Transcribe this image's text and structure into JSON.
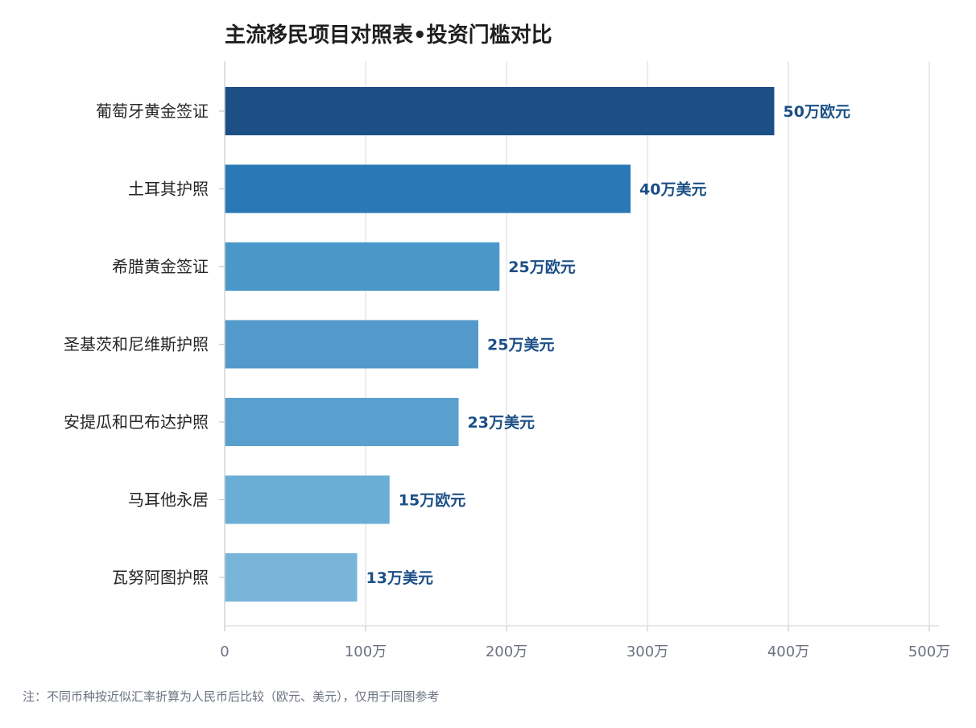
{
  "chart_data": {
    "type": "bar",
    "orientation": "horizontal",
    "title": "主流移民项目对照表•投资门槛对比",
    "categories": [
      "葡萄牙黄金签证",
      "土耳其护照",
      "希腊黄金签证",
      "圣基茨和尼维斯护照",
      "安提瓜和巴布达护照",
      "马耳他永居",
      "瓦努阿图护照"
    ],
    "values": [
      390,
      288,
      195,
      180,
      166,
      117,
      94
    ],
    "value_labels": [
      "50万欧元",
      "40万美元",
      "25万欧元",
      "25万美元",
      "23万美元",
      "15万欧元",
      "13万美元"
    ],
    "colors": [
      "#1c4f86",
      "#2a78b6",
      "#4a98c9",
      "#5399cb",
      "#5aa0ce",
      "#6aaed6",
      "#78b5d9"
    ],
    "xlim": [
      0,
      500
    ],
    "xticks": [
      0,
      100,
      200,
      300,
      400,
      500
    ],
    "xtick_labels": [
      "0",
      "100万",
      "200万",
      "300万",
      "400万",
      "500万"
    ],
    "xlabel": "",
    "ylabel": "",
    "grid": "vertical",
    "legend": "none"
  },
  "footnote": "注：不同币种按近似汇率折算为人民币后比较（欧元、美元），仅用于同图参考"
}
